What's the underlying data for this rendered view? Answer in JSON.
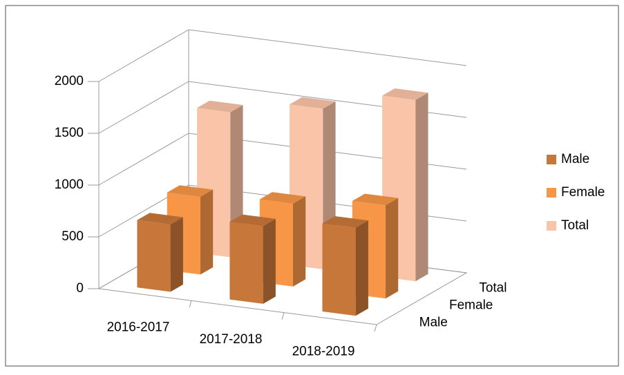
{
  "chart_data": {
    "type": "bar3d",
    "categories": [
      "2016-2017",
      "2017-2018",
      "2018-2019"
    ],
    "series": [
      {
        "name": "Male",
        "color": "#c8773a",
        "values": [
          650,
          750,
          850
        ]
      },
      {
        "name": "Female",
        "color": "#f79646",
        "values": [
          750,
          800,
          900
        ]
      },
      {
        "name": "Total",
        "color": "#fac4a8",
        "values": [
          1400,
          1550,
          1750
        ]
      }
    ],
    "ylim": [
      0,
      2000
    ],
    "yticks": [
      0,
      500,
      1000,
      1500,
      2000
    ],
    "grid": true,
    "legend": "right"
  }
}
